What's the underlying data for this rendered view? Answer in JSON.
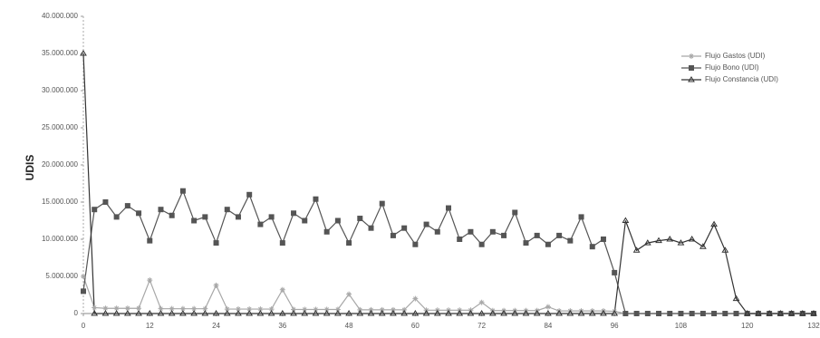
{
  "chart_data": {
    "type": "line",
    "y_label": "UDIS",
    "x": [
      0,
      2,
      4,
      6,
      8,
      10,
      12,
      14,
      16,
      18,
      20,
      22,
      24,
      26,
      28,
      30,
      32,
      34,
      36,
      38,
      40,
      42,
      44,
      46,
      48,
      50,
      52,
      54,
      56,
      58,
      60,
      62,
      64,
      66,
      68,
      70,
      72,
      74,
      76,
      78,
      80,
      82,
      84,
      86,
      88,
      90,
      92,
      94,
      96,
      98,
      100,
      102,
      104,
      106,
      108,
      110,
      112,
      114,
      116,
      118,
      120,
      122,
      124,
      126,
      128,
      130,
      132
    ],
    "xlim": [
      0,
      132
    ],
    "xticks": [
      0,
      12,
      24,
      36,
      48,
      60,
      72,
      84,
      96,
      108,
      120,
      132
    ],
    "ylim": [
      0,
      40000000
    ],
    "yticks": [
      0,
      {
        "value": 5000000,
        "label": "5.000.000"
      },
      {
        "value": 10000000,
        "label": "10.000.000"
      },
      {
        "value": 15000000,
        "label": "15.000.000"
      },
      {
        "value": 20000000,
        "label": "20.000.000"
      },
      {
        "value": 25000000,
        "label": "25.000.000"
      },
      {
        "value": 30000000,
        "label": "30.000.000"
      },
      {
        "value": 35000000,
        "label": "35.000.000"
      },
      {
        "value": 40000000,
        "label": "40.000.000"
      }
    ],
    "legend_position": "top-right",
    "series": [
      {
        "name": "Flujo Gastos (UDI)",
        "color": "#a8a8a8",
        "marker": "star",
        "values": [
          5000000,
          800000,
          700000,
          700000,
          700000,
          700000,
          4500000,
          650000,
          650000,
          650000,
          650000,
          650000,
          3800000,
          600000,
          600000,
          600000,
          600000,
          600000,
          3200000,
          550000,
          550000,
          550000,
          550000,
          550000,
          2600000,
          500000,
          500000,
          500000,
          500000,
          500000,
          2000000,
          450000,
          450000,
          450000,
          450000,
          450000,
          1500000,
          400000,
          400000,
          400000,
          400000,
          400000,
          900000,
          350000,
          350000,
          350000,
          350000,
          350000,
          300000,
          0,
          0,
          0,
          0,
          0,
          0,
          0,
          0,
          0,
          0,
          0,
          0,
          0,
          0,
          0,
          0,
          0,
          0
        ]
      },
      {
        "name": "Flujo Bono (UDI)",
        "color": "#555555",
        "marker": "square",
        "values": [
          3000000,
          14000000,
          15000000,
          13000000,
          14500000,
          13500000,
          9800000,
          14000000,
          13200000,
          16500000,
          12500000,
          13000000,
          9500000,
          14000000,
          13000000,
          16000000,
          12000000,
          13000000,
          9500000,
          13500000,
          12500000,
          15400000,
          11000000,
          12500000,
          9500000,
          12800000,
          11500000,
          14800000,
          10500000,
          11500000,
          9300000,
          12000000,
          11000000,
          14200000,
          10000000,
          11000000,
          9300000,
          11000000,
          10500000,
          13600000,
          9500000,
          10500000,
          9300000,
          10500000,
          9800000,
          13000000,
          9000000,
          10000000,
          5500000,
          0,
          0,
          0,
          0,
          0,
          0,
          0,
          0,
          0,
          0,
          0,
          0,
          0,
          0,
          0,
          0,
          0,
          0
        ]
      },
      {
        "name": "Flujo Constancia (UDI)",
        "color": "#333333",
        "marker": "triangle",
        "values": [
          35000000,
          0,
          0,
          0,
          0,
          0,
          0,
          0,
          0,
          0,
          0,
          0,
          0,
          0,
          0,
          0,
          0,
          0,
          0,
          0,
          0,
          0,
          0,
          0,
          0,
          0,
          0,
          0,
          0,
          0,
          0,
          0,
          0,
          0,
          0,
          0,
          0,
          0,
          0,
          0,
          0,
          0,
          0,
          0,
          0,
          0,
          0,
          0,
          0,
          12500000,
          8500000,
          9500000,
          9800000,
          10000000,
          9500000,
          10000000,
          9000000,
          12000000,
          8500000,
          2000000,
          0,
          0,
          0,
          0,
          0,
          0,
          0
        ]
      }
    ]
  }
}
